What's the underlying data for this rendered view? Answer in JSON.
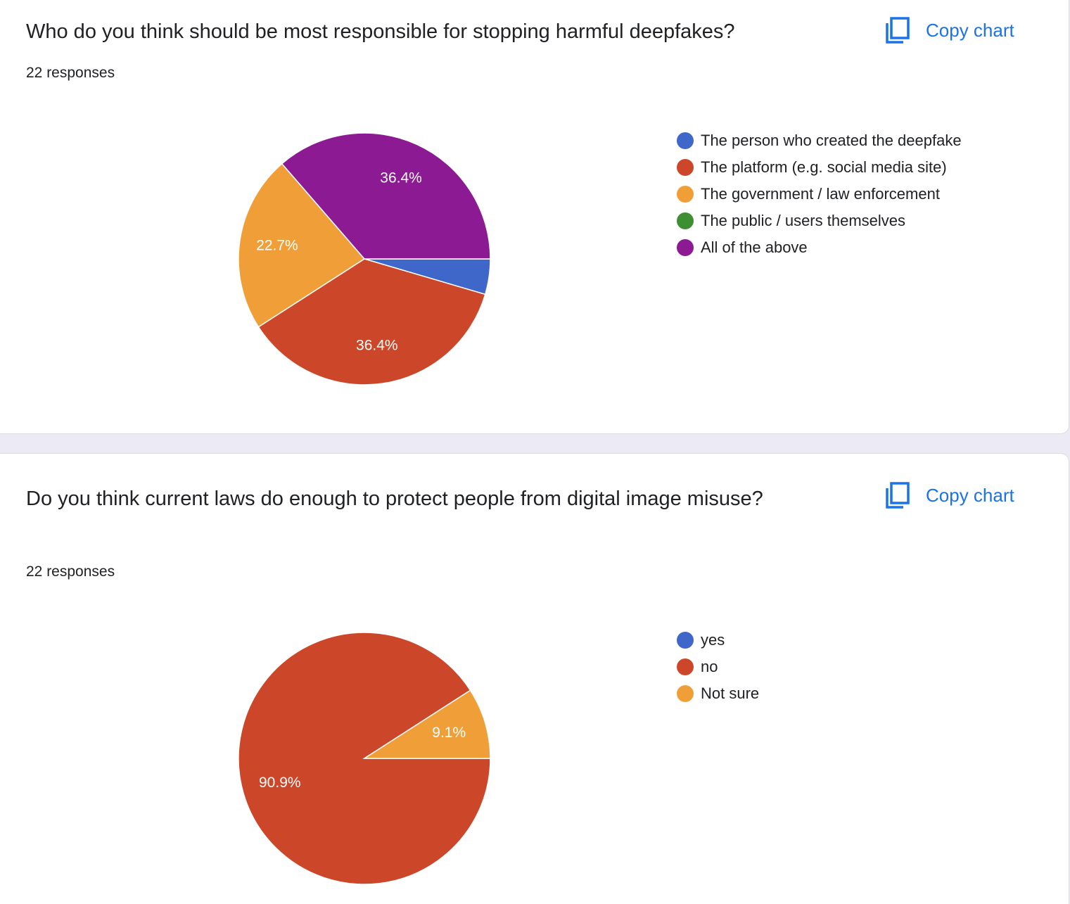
{
  "copy_label": "Copy chart",
  "icons": {
    "copy": "copy-icon"
  },
  "chart_data": [
    {
      "type": "pie",
      "title": "Who do you think should be most responsible for stopping harmful deepfakes?",
      "responses": "22 responses",
      "categories": [
        "The person who created the deepfake",
        "The platform (e.g. social media site)",
        "The government / law enforcement",
        "The public / users themselves",
        "All of the above"
      ],
      "values": [
        1,
        8,
        5,
        0,
        8
      ],
      "labels": [
        "",
        "36.4%",
        "22.7%",
        "",
        "36.4%"
      ],
      "colors": [
        "#3f66c9",
        "#cc4729",
        "#f09f38",
        "#3d8f32",
        "#8b1a93"
      ],
      "legend": "right"
    },
    {
      "type": "pie",
      "title": "Do you think current laws do enough to protect people from digital image misuse?",
      "responses": "22 responses",
      "categories": [
        "yes",
        "no",
        "Not sure"
      ],
      "values": [
        0,
        20,
        2
      ],
      "labels": [
        "",
        "90.9%",
        "9.1%"
      ],
      "colors": [
        "#3f66c9",
        "#cc4729",
        "#f09f38"
      ],
      "legend": "right"
    }
  ]
}
